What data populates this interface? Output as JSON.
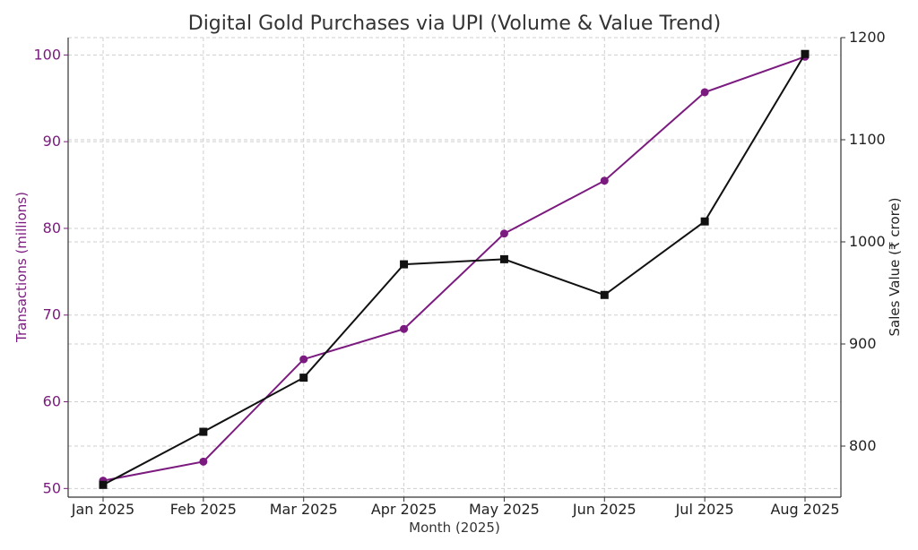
{
  "chart_data": {
    "type": "line",
    "title": "Digital Gold Purchases via UPI (Volume & Value Trend)",
    "xlabel": "Month (2025)",
    "ylabel_left": "Transactions (millions)",
    "ylabel_right": "Sales Value (₹ crore)",
    "categories": [
      "Jan 2025",
      "Feb 2025",
      "Mar 2025",
      "Apr 2025",
      "May 2025",
      "Jun 2025",
      "Jul 2025",
      "Aug 2025"
    ],
    "y_left_range": [
      49,
      102
    ],
    "y_left_ticks": [
      50,
      60,
      70,
      80,
      90,
      100
    ],
    "y_right_range": [
      750,
      1200
    ],
    "y_right_ticks": [
      800,
      900,
      1000,
      1100,
      1200
    ],
    "grid": true,
    "series": [
      {
        "axis": "left",
        "color": "#7b1a7f",
        "marker": "circle",
        "values": [
          50.9,
          53.1,
          64.9,
          68.4,
          79.4,
          85.5,
          95.7,
          99.8
        ]
      },
      {
        "axis": "right",
        "color": "#111111",
        "marker": "square",
        "values": [
          762,
          814,
          867,
          978,
          983,
          948,
          1020,
          1184
        ]
      }
    ],
    "left_axis_color": "#7b1a7f",
    "right_axis_color": "#222222"
  }
}
